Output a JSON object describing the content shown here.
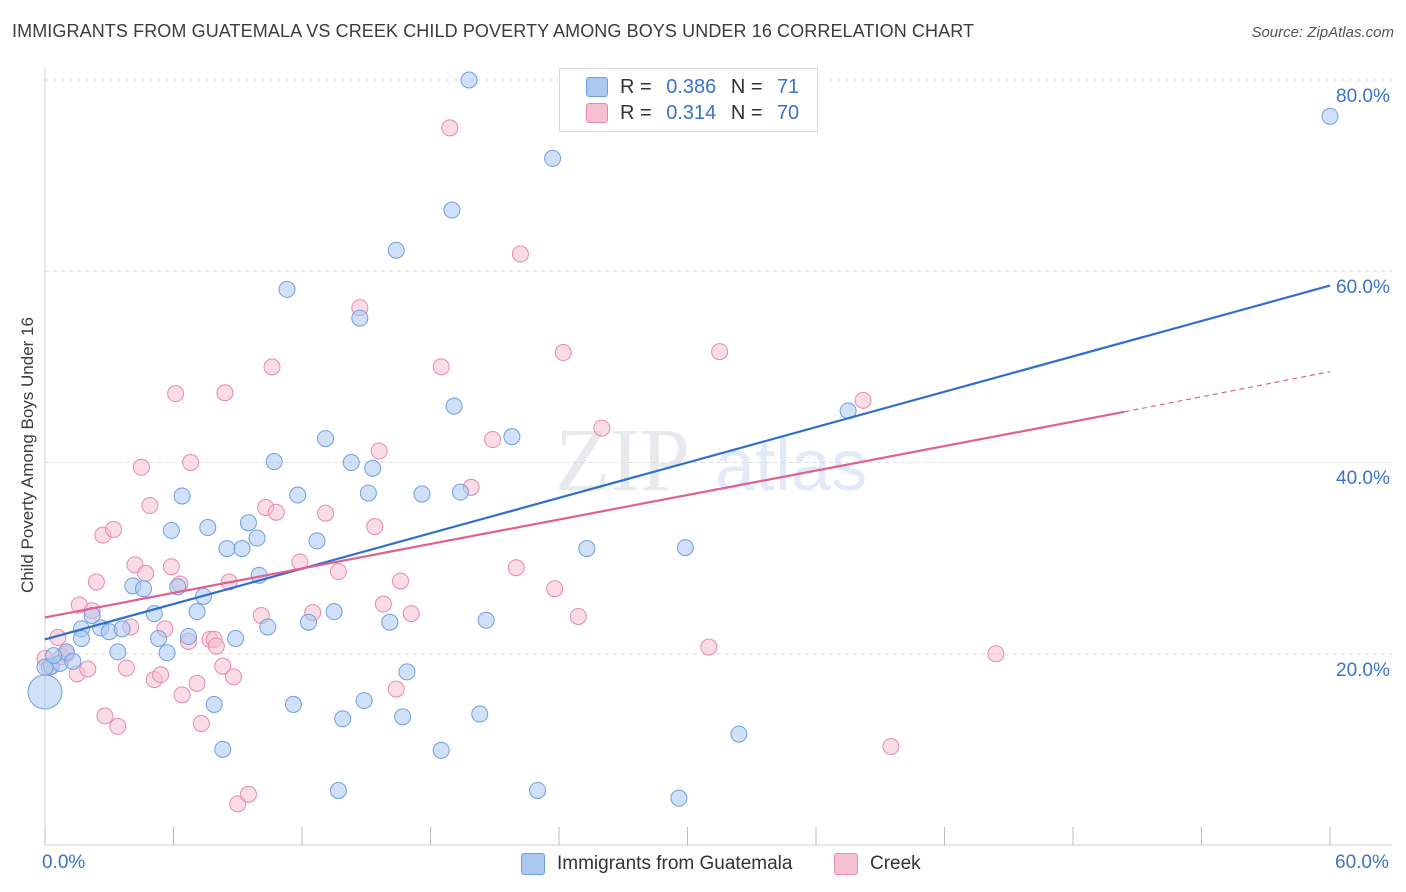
{
  "title": "IMMIGRANTS FROM GUATEMALA VS CREEK CHILD POVERTY AMONG BOYS UNDER 16 CORRELATION CHART",
  "source": "Source: ZipAtlas.com",
  "watermark": {
    "zip": "ZIP",
    "atlas": "atlas"
  },
  "legend": {
    "r_label": "R =",
    "n_label": "N =",
    "series1": {
      "r": "0.386",
      "n": "71"
    },
    "series2": {
      "r": "0.314",
      "n": "70"
    }
  },
  "colors": {
    "blue_fill": "#aac8f0",
    "blue_stroke": "#6f9fe0",
    "blue_line": "#3070cc",
    "pink_fill": "#f6bfd2",
    "pink_stroke": "#e88aa8",
    "pink_line": "#e0608f",
    "tick_text": "#3b73c6"
  },
  "chart_data": {
    "type": "scatter",
    "title": "IMMIGRANTS FROM GUATEMALA VS CREEK CHILD POVERTY AMONG BOYS UNDER 16 CORRELATION CHART",
    "xlabel": "",
    "ylabel": "Child Poverty Among Boys Under 16",
    "xlim": [
      0,
      60
    ],
    "ylim": [
      0,
      80
    ],
    "x_tick_labels": [
      "0.0%",
      "60.0%"
    ],
    "y_tick_labels": [
      "20.0%",
      "40.0%",
      "60.0%",
      "80.0%"
    ],
    "y_ticks": [
      20,
      40,
      60,
      80
    ],
    "grid": true,
    "legend_position": "top-center",
    "series": [
      {
        "name": "Immigrants from Guatemala",
        "r": 0.386,
        "n": 71,
        "trend": {
          "x": [
            0,
            60
          ],
          "y": [
            21.5,
            58.5
          ]
        },
        "points": [
          [
            0.0,
            16.0
          ],
          [
            0.3,
            18.7
          ],
          [
            0.7,
            19.0
          ],
          [
            1.0,
            20.2
          ],
          [
            1.3,
            19.2
          ],
          [
            1.7,
            22.6
          ],
          [
            1.7,
            21.6
          ],
          [
            2.2,
            24.0
          ],
          [
            2.6,
            22.7
          ],
          [
            3.0,
            22.3
          ],
          [
            3.6,
            22.6
          ],
          [
            3.4,
            20.2
          ],
          [
            4.1,
            27.1
          ],
          [
            4.6,
            26.8
          ],
          [
            5.1,
            24.2
          ],
          [
            5.3,
            21.6
          ],
          [
            5.7,
            20.1
          ],
          [
            5.9,
            32.9
          ],
          [
            6.2,
            27.0
          ],
          [
            6.4,
            36.5
          ],
          [
            6.7,
            21.8
          ],
          [
            7.1,
            24.4
          ],
          [
            7.4,
            26.0
          ],
          [
            7.6,
            33.2
          ],
          [
            7.9,
            14.7
          ],
          [
            8.3,
            10.0
          ],
          [
            8.5,
            31.0
          ],
          [
            8.9,
            21.6
          ],
          [
            9.2,
            31.0
          ],
          [
            9.5,
            33.7
          ],
          [
            9.9,
            32.1
          ],
          [
            10.0,
            28.2
          ],
          [
            10.4,
            22.8
          ],
          [
            10.7,
            40.1
          ],
          [
            11.3,
            58.1
          ],
          [
            11.6,
            14.7
          ],
          [
            11.8,
            36.6
          ],
          [
            12.3,
            23.3
          ],
          [
            12.7,
            31.8
          ],
          [
            13.1,
            42.5
          ],
          [
            13.5,
            24.4
          ],
          [
            13.7,
            5.7
          ],
          [
            13.9,
            13.2
          ],
          [
            14.3,
            40.0
          ],
          [
            14.7,
            55.1
          ],
          [
            14.9,
            15.1
          ],
          [
            15.1,
            36.8
          ],
          [
            15.3,
            39.4
          ],
          [
            16.1,
            23.3
          ],
          [
            16.4,
            62.2
          ],
          [
            16.7,
            13.4
          ],
          [
            16.9,
            18.1
          ],
          [
            17.6,
            36.7
          ],
          [
            18.5,
            9.9
          ],
          [
            19.0,
            66.4
          ],
          [
            19.1,
            45.9
          ],
          [
            19.4,
            36.9
          ],
          [
            19.8,
            80.0
          ],
          [
            20.3,
            13.7
          ],
          [
            20.6,
            23.5
          ],
          [
            21.8,
            42.7
          ],
          [
            23.0,
            5.7
          ],
          [
            23.7,
            71.8
          ],
          [
            25.3,
            31.0
          ],
          [
            29.6,
            4.9
          ],
          [
            29.9,
            31.1
          ],
          [
            32.4,
            11.6
          ],
          [
            37.5,
            45.4
          ],
          [
            60.0,
            76.2
          ],
          [
            0.0,
            18.6
          ],
          [
            0.4,
            19.8
          ]
        ]
      },
      {
        "name": "Creek",
        "r": 0.314,
        "n": 70,
        "trend": {
          "x": [
            0,
            50.4
          ],
          "y": [
            23.8,
            45.3
          ]
        },
        "trend_dashed": {
          "x": [
            50.4,
            60
          ],
          "y": [
            45.3,
            49.5
          ]
        },
        "points": [
          [
            0.0,
            19.5
          ],
          [
            0.2,
            18.6
          ],
          [
            0.6,
            21.7
          ],
          [
            0.8,
            19.7
          ],
          [
            1.0,
            20.0
          ],
          [
            1.5,
            17.9
          ],
          [
            1.6,
            25.1
          ],
          [
            2.0,
            18.4
          ],
          [
            2.2,
            24.5
          ],
          [
            2.4,
            27.5
          ],
          [
            2.7,
            32.4
          ],
          [
            2.8,
            13.5
          ],
          [
            3.2,
            33.0
          ],
          [
            3.4,
            12.4
          ],
          [
            3.8,
            18.5
          ],
          [
            4.0,
            22.8
          ],
          [
            4.2,
            29.3
          ],
          [
            4.5,
            39.5
          ],
          [
            4.7,
            28.4
          ],
          [
            4.9,
            35.5
          ],
          [
            5.1,
            17.3
          ],
          [
            5.4,
            17.8
          ],
          [
            5.6,
            22.6
          ],
          [
            5.9,
            29.1
          ],
          [
            6.1,
            47.2
          ],
          [
            6.3,
            27.3
          ],
          [
            6.4,
            15.7
          ],
          [
            6.7,
            21.3
          ],
          [
            6.8,
            40.0
          ],
          [
            7.1,
            16.9
          ],
          [
            7.3,
            12.7
          ],
          [
            7.7,
            21.5
          ],
          [
            7.9,
            21.5
          ],
          [
            8.0,
            20.8
          ],
          [
            8.3,
            18.7
          ],
          [
            8.4,
            47.3
          ],
          [
            8.6,
            27.5
          ],
          [
            8.8,
            17.6
          ],
          [
            9.0,
            4.3
          ],
          [
            9.5,
            5.3
          ],
          [
            10.1,
            24.0
          ],
          [
            10.3,
            35.3
          ],
          [
            10.6,
            50.0
          ],
          [
            10.8,
            34.8
          ],
          [
            11.9,
            29.6
          ],
          [
            12.5,
            24.3
          ],
          [
            13.1,
            34.7
          ],
          [
            13.7,
            28.6
          ],
          [
            14.7,
            56.2
          ],
          [
            15.4,
            33.3
          ],
          [
            15.6,
            41.2
          ],
          [
            15.8,
            25.2
          ],
          [
            16.4,
            16.3
          ],
          [
            16.6,
            27.6
          ],
          [
            17.1,
            24.2
          ],
          [
            18.5,
            50.0
          ],
          [
            18.9,
            75.0
          ],
          [
            19.9,
            37.4
          ],
          [
            20.9,
            42.4
          ],
          [
            22.0,
            29.0
          ],
          [
            22.2,
            61.8
          ],
          [
            23.8,
            26.8
          ],
          [
            24.2,
            51.5
          ],
          [
            24.9,
            23.9
          ],
          [
            26.0,
            43.6
          ],
          [
            31.0,
            20.7
          ],
          [
            31.5,
            51.6
          ],
          [
            38.2,
            46.5
          ],
          [
            39.5,
            10.3
          ],
          [
            44.4,
            20.0
          ]
        ]
      }
    ]
  }
}
